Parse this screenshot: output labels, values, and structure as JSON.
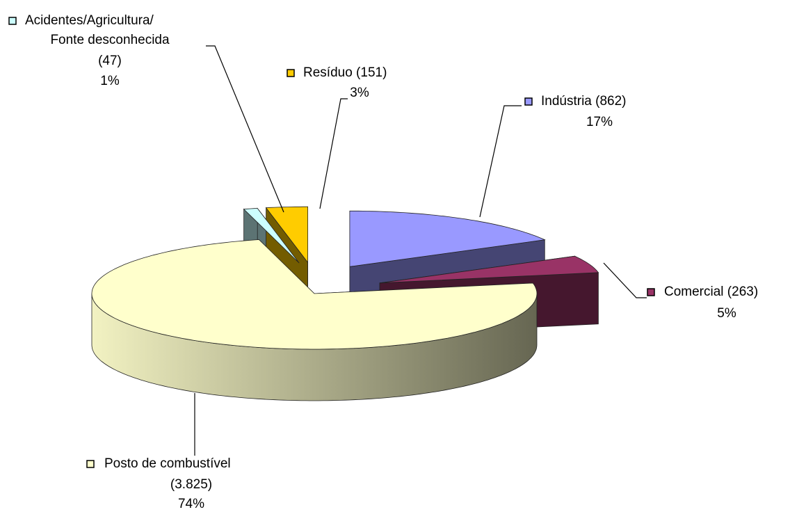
{
  "chart_data": {
    "type": "pie3d",
    "categories": [
      [
        "Indústria (862)"
      ],
      [
        "Comercial (263)"
      ],
      [
        "Posto de combustível",
        "(3.825)"
      ],
      [
        "Acidentes/Agricultura/",
        "Fonte desconhecida",
        "(47)"
      ],
      [
        "Resíduo (151)"
      ]
    ],
    "values": [
      17,
      5,
      74,
      1,
      3
    ],
    "value_labels": [
      "17%",
      "5%",
      "74%",
      "1%",
      "3%"
    ],
    "colors": [
      "#9999ff",
      "#993366",
      "#ffffcc",
      "#ccffff",
      "#ffcc00"
    ]
  }
}
